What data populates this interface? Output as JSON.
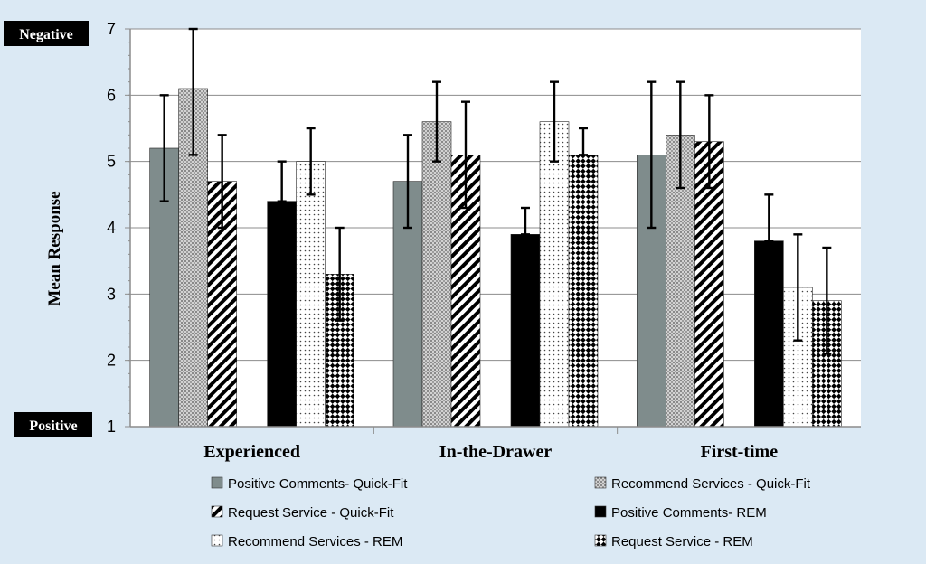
{
  "chart_data": {
    "type": "bar",
    "title": "",
    "xlabel": "",
    "ylabel": "Mean Response",
    "ylim": [
      1,
      7
    ],
    "yticks": [
      1,
      2,
      3,
      4,
      5,
      6,
      7
    ],
    "grid": true,
    "legend_position": "bottom",
    "annotations": {
      "top": "Negative",
      "bottom": "Positive"
    },
    "categories": [
      "Experienced",
      "In-the-Drawer",
      "First-time"
    ],
    "series": [
      {
        "name": "Positive Comments- Quick-Fit",
        "pattern": "solid-gray",
        "color": "#7f8c8c",
        "values": [
          5.2,
          4.7,
          5.1
        ],
        "err_low": [
          4.4,
          4.0,
          4.0
        ],
        "err_high": [
          6.0,
          5.4,
          6.2
        ]
      },
      {
        "name": "Recommend Services - Quick-Fit",
        "pattern": "fine-dots",
        "color": "#bcbcbc",
        "values": [
          6.1,
          5.6,
          5.4
        ],
        "err_low": [
          5.1,
          5.0,
          4.6
        ],
        "err_high": [
          7.0,
          6.2,
          6.2
        ]
      },
      {
        "name": "Request Service - Quick-Fit",
        "pattern": "diagonal-stripes",
        "color": "#000000",
        "values": [
          4.7,
          5.1,
          5.3
        ],
        "err_low": [
          4.0,
          4.3,
          4.6
        ],
        "err_high": [
          5.4,
          5.9,
          6.0
        ]
      },
      {
        "name": "Positive Comments- REM",
        "pattern": "solid-black",
        "color": "#000000",
        "values": [
          4.4,
          3.9,
          3.8
        ],
        "err_low": [
          4.4,
          3.9,
          3.8
        ],
        "err_high": [
          5.0,
          4.3,
          4.5
        ]
      },
      {
        "name": "Recommend Services - REM",
        "pattern": "sparse-dots",
        "color": "#ffffff",
        "values": [
          5.0,
          5.6,
          3.1
        ],
        "err_low": [
          4.5,
          5.0,
          2.3
        ],
        "err_high": [
          5.5,
          6.2,
          3.9
        ]
      },
      {
        "name": "Request Service - REM",
        "pattern": "checker-diamonds",
        "color": "#000000",
        "values": [
          3.3,
          5.1,
          2.9
        ],
        "err_low": [
          2.6,
          5.1,
          2.1
        ],
        "err_high": [
          4.0,
          5.5,
          3.7
        ]
      }
    ]
  }
}
